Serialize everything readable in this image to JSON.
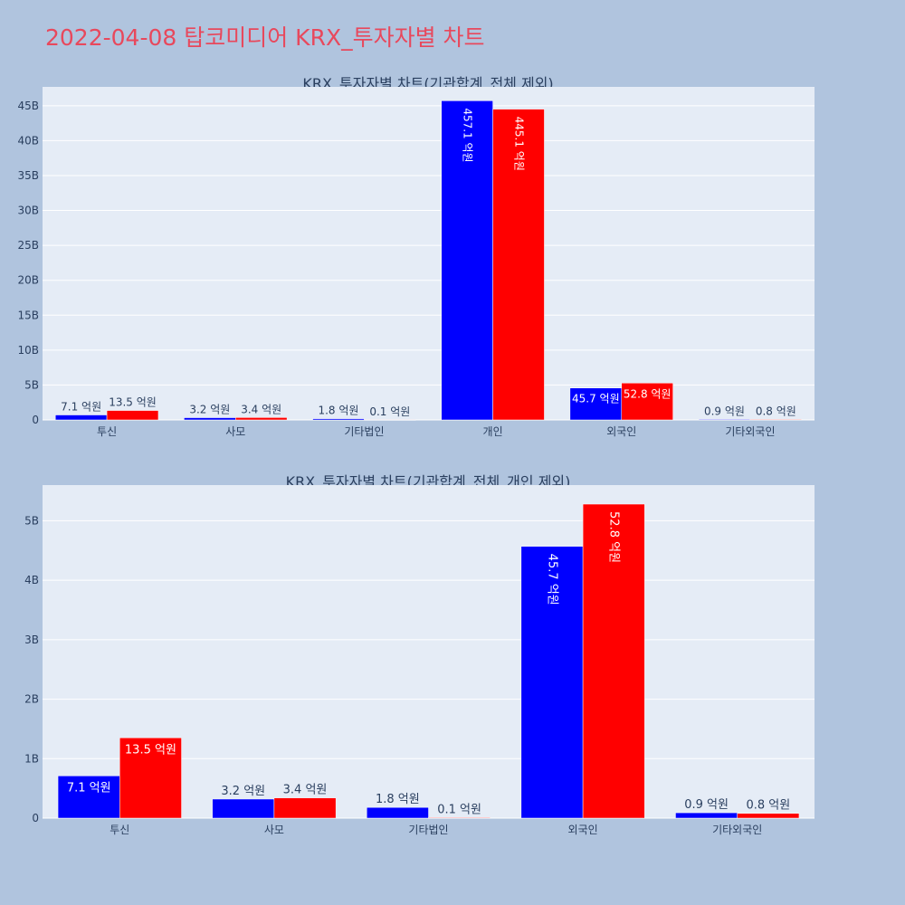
{
  "page": {
    "title": "2022-04-08 탑코미디어 KRX_투자자별 차트"
  },
  "colors": {
    "background": "#b0c4de",
    "plot_bg": "#e5ecf6",
    "title": "#e8485c",
    "series_1": "#0000ff",
    "series_2": "#ff0000",
    "text": "#2a3f5f",
    "grid": "#ffffff"
  },
  "chart_data": [
    {
      "type": "bar",
      "title": "KRX_투자자별 차트(기관합계_전체 제외)",
      "categories": [
        "투신",
        "사모",
        "기타법인",
        "개인",
        "외국인",
        "기타외국인"
      ],
      "series": [
        {
          "color": "#0000ff",
          "values": [
            0.71,
            0.32,
            0.18,
            45.71,
            4.57,
            0.09
          ],
          "labels": [
            "7.1 억원",
            "3.2 억원",
            "1.8 억원",
            "457.1 억원",
            "45.7 억원",
            "0.9 억원"
          ]
        },
        {
          "color": "#ff0000",
          "values": [
            1.35,
            0.34,
            0.01,
            44.51,
            5.28,
            0.08
          ],
          "labels": [
            "13.5 억원",
            "3.4 억원",
            "0.1 억원",
            "445.1 억원",
            "52.8 억원",
            "0.8 억원"
          ]
        }
      ],
      "ylim": [
        0,
        47.7
      ],
      "yticks": [
        0,
        5,
        10,
        15,
        20,
        25,
        30,
        35,
        40,
        45
      ],
      "ytick_labels": [
        "0",
        "5B",
        "10B",
        "15B",
        "20B",
        "25B",
        "30B",
        "35B",
        "40B",
        "45B"
      ],
      "grid": true,
      "xlabel": "",
      "ylabel": ""
    },
    {
      "type": "bar",
      "title": "KRX_투자자별 차트(기관합계_전체_개인 제외)",
      "categories": [
        "투신",
        "사모",
        "기타법인",
        "외국인",
        "기타외국인"
      ],
      "series": [
        {
          "color": "#0000ff",
          "values": [
            0.71,
            0.32,
            0.18,
            4.57,
            0.09
          ],
          "labels": [
            "7.1 억원",
            "3.2 억원",
            "1.8 억원",
            "45.7 억원",
            "0.9 억원"
          ]
        },
        {
          "color": "#ff0000",
          "values": [
            1.35,
            0.34,
            0.01,
            5.28,
            0.08
          ],
          "labels": [
            "13.5 억원",
            "3.4 억원",
            "0.1 억원",
            "52.8 억원",
            "0.8 억원"
          ]
        }
      ],
      "ylim": [
        0,
        5.6
      ],
      "yticks": [
        0,
        1,
        2,
        3,
        4,
        5
      ],
      "ytick_labels": [
        "0",
        "1B",
        "2B",
        "3B",
        "4B",
        "5B"
      ],
      "grid": true,
      "xlabel": "",
      "ylabel": ""
    }
  ]
}
